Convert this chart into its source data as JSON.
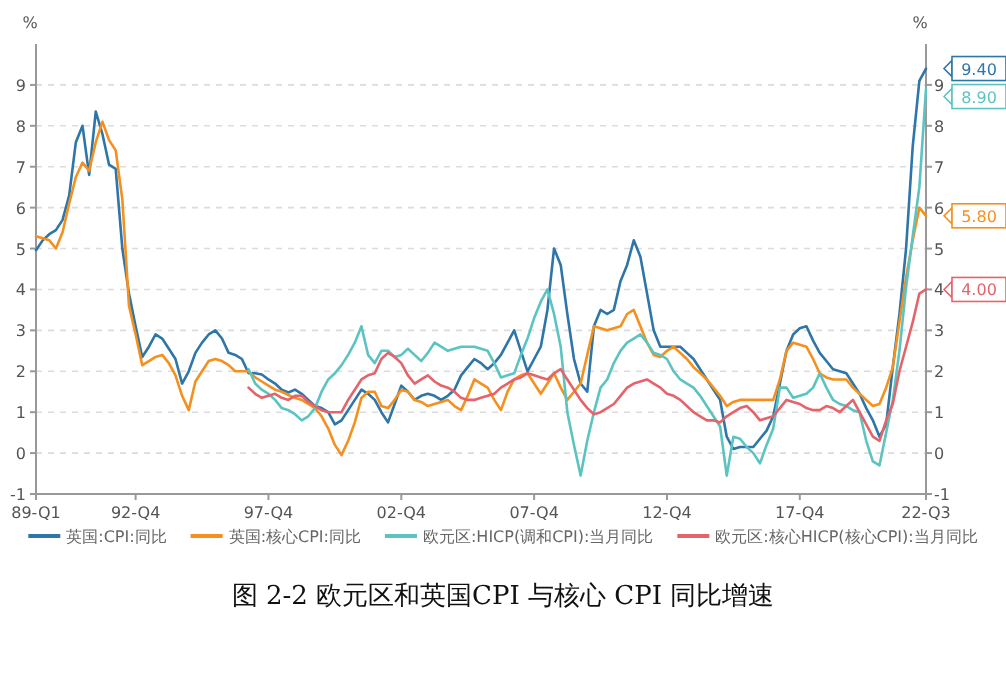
{
  "chart_data": {
    "type": "line",
    "title": "图 2-2 欧元区和英国CPI 与核心 CPI 同比增速",
    "ylabel": "%",
    "y2label": "%",
    "categories": [
      "89-Q1",
      null,
      null,
      null,
      null,
      null,
      null,
      null,
      null,
      null,
      null,
      null,
      null,
      null,
      null,
      "92-Q4",
      null,
      null,
      null,
      null,
      null,
      null,
      null,
      null,
      null,
      null,
      null,
      null,
      null,
      null,
      null,
      null,
      null,
      null,
      null,
      "97-Q4",
      null,
      null,
      null,
      null,
      null,
      null,
      null,
      null,
      null,
      null,
      null,
      null,
      null,
      null,
      null,
      null,
      null,
      null,
      null,
      "02-Q4",
      null,
      null,
      null,
      null,
      null,
      null,
      null,
      null,
      null,
      null,
      null,
      null,
      null,
      null,
      null,
      null,
      null,
      null,
      null,
      "07-Q4",
      null,
      null,
      null,
      null,
      null,
      null,
      null,
      null,
      null,
      null,
      null,
      null,
      null,
      null,
      null,
      null,
      null,
      null,
      null,
      "12-Q4",
      null,
      null,
      null,
      null,
      null,
      null,
      null,
      null,
      null,
      null,
      null,
      null,
      null,
      null,
      null,
      null,
      null,
      null,
      null,
      "17-Q4",
      null,
      null,
      null,
      null,
      null,
      null,
      null,
      null,
      null,
      null,
      null,
      null,
      null,
      null,
      null,
      null,
      null,
      null,
      "22-Q3"
    ],
    "ylim": [
      -1,
      10
    ],
    "yticks": [
      -1,
      0,
      1,
      2,
      3,
      4,
      5,
      6,
      7,
      8,
      9
    ],
    "y2lim": [
      -1,
      10
    ],
    "y2ticks": [
      -1,
      0,
      1,
      2,
      3,
      4,
      5,
      6,
      7,
      8,
      9
    ],
    "grid": "y",
    "legend": "bottom",
    "line_style": "solid",
    "marker": "none",
    "series": [
      {
        "name": "英国:CPI:同比",
        "color": "#2e75a8",
        "values": [
          4.96,
          5.2,
          5.35,
          5.45,
          5.7,
          6.3,
          7.6,
          8.0,
          6.8,
          8.35,
          7.8,
          7.05,
          6.95,
          5.0,
          3.9,
          3.1,
          2.35,
          2.6,
          2.9,
          2.8,
          2.55,
          2.3,
          1.7,
          2.0,
          2.45,
          2.7,
          2.9,
          3.0,
          2.8,
          2.45,
          2.4,
          2.3,
          1.95,
          1.95,
          1.92,
          1.8,
          1.7,
          1.55,
          1.48,
          1.55,
          1.45,
          1.3,
          1.15,
          1.1,
          1.0,
          0.7,
          0.8,
          1.05,
          1.3,
          1.55,
          1.45,
          1.3,
          1.0,
          0.75,
          1.2,
          1.65,
          1.5,
          1.3,
          1.4,
          1.45,
          1.4,
          1.3,
          1.4,
          1.55,
          1.9,
          2.1,
          2.3,
          2.2,
          2.05,
          2.2,
          2.4,
          2.7,
          3.0,
          2.5,
          2.0,
          2.3,
          2.6,
          3.5,
          5.0,
          4.6,
          3.4,
          2.3,
          1.7,
          1.5,
          3.1,
          3.5,
          3.4,
          3.5,
          4.2,
          4.6,
          5.2,
          4.8,
          3.9,
          3.0,
          2.6,
          2.6,
          2.6,
          2.6,
          2.45,
          2.3,
          2.05,
          1.8,
          1.55,
          1.3,
          0.4,
          0.1,
          0.15,
          0.15,
          0.15,
          0.35,
          0.55,
          0.9,
          1.7,
          2.5,
          2.9,
          3.05,
          3.1,
          2.75,
          2.45,
          2.25,
          2.05,
          2.0,
          1.95,
          1.7,
          1.45,
          1.1,
          0.8,
          0.4,
          0.7,
          2.1,
          3.4,
          5.0,
          7.5,
          9.1,
          9.4
        ]
      },
      {
        "name": "英国:核心CPI:同比",
        "color": "#f5901e",
        "values": [
          5.3,
          5.25,
          5.2,
          5.0,
          5.4,
          6.1,
          6.75,
          7.1,
          6.9,
          7.6,
          8.1,
          7.65,
          7.4,
          6.2,
          3.6,
          2.9,
          2.15,
          2.25,
          2.35,
          2.4,
          2.2,
          1.9,
          1.4,
          1.05,
          1.75,
          2.0,
          2.25,
          2.3,
          2.25,
          2.15,
          2.0,
          2.0,
          2.0,
          1.85,
          1.75,
          1.65,
          1.55,
          1.5,
          1.42,
          1.35,
          1.3,
          1.2,
          1.1,
          0.9,
          0.6,
          0.2,
          -0.05,
          0.3,
          0.75,
          1.35,
          1.5,
          1.5,
          1.15,
          1.1,
          1.3,
          1.55,
          1.5,
          1.3,
          1.25,
          1.15,
          1.2,
          1.25,
          1.3,
          1.15,
          1.05,
          1.4,
          1.8,
          1.7,
          1.6,
          1.3,
          1.05,
          1.5,
          1.8,
          1.9,
          1.95,
          1.7,
          1.45,
          1.7,
          1.95,
          1.6,
          1.3,
          1.5,
          1.7,
          2.4,
          3.1,
          3.05,
          3.0,
          3.05,
          3.1,
          3.4,
          3.5,
          3.1,
          2.7,
          2.4,
          2.35,
          2.5,
          2.6,
          2.45,
          2.3,
          2.1,
          1.95,
          1.8,
          1.6,
          1.4,
          1.15,
          1.25,
          1.3,
          1.3,
          1.3,
          1.3,
          1.3,
          1.3,
          1.8,
          2.5,
          2.7,
          2.65,
          2.6,
          2.3,
          1.95,
          1.85,
          1.8,
          1.8,
          1.8,
          1.6,
          1.45,
          1.3,
          1.15,
          1.2,
          1.6,
          2.1,
          3.2,
          4.3,
          5.2,
          6.0,
          5.8
        ]
      },
      {
        "name": "欧元区:HICP(调和CPI):当月同比",
        "color": "#5bc4c0",
        "values": [
          null,
          null,
          null,
          null,
          null,
          null,
          null,
          null,
          null,
          null,
          null,
          null,
          null,
          null,
          null,
          null,
          null,
          null,
          null,
          null,
          null,
          null,
          null,
          null,
          null,
          null,
          null,
          null,
          null,
          null,
          null,
          null,
          2.05,
          1.7,
          1.55,
          1.45,
          1.3,
          1.1,
          1.05,
          0.95,
          0.8,
          0.9,
          1.1,
          1.5,
          1.8,
          1.95,
          2.15,
          2.4,
          2.7,
          3.1,
          2.4,
          2.2,
          2.5,
          2.5,
          2.35,
          2.4,
          2.55,
          2.4,
          2.25,
          2.45,
          2.7,
          2.6,
          2.5,
          2.55,
          2.6,
          2.6,
          2.6,
          2.55,
          2.5,
          2.2,
          1.85,
          1.9,
          1.95,
          2.4,
          2.8,
          3.3,
          3.7,
          4.0,
          3.4,
          2.6,
          1.0,
          0.2,
          -0.55,
          0.3,
          1.0,
          1.6,
          1.8,
          2.2,
          2.5,
          2.7,
          2.8,
          2.9,
          2.7,
          2.45,
          2.4,
          2.3,
          2.0,
          1.8,
          1.7,
          1.6,
          1.4,
          1.15,
          0.9,
          0.65,
          -0.55,
          0.4,
          0.35,
          0.15,
          0.0,
          -0.25,
          0.2,
          0.6,
          1.6,
          1.6,
          1.35,
          1.4,
          1.45,
          1.6,
          1.95,
          1.6,
          1.3,
          1.2,
          1.15,
          1.05,
          1.0,
          0.3,
          -0.2,
          -0.3,
          0.5,
          1.3,
          2.5,
          4.05,
          5.3,
          6.5,
          8.9
        ]
      },
      {
        "name": "欧元区:核心HICP(核心CPI):当月同比",
        "color": "#e5636a",
        "values": [
          null,
          null,
          null,
          null,
          null,
          null,
          null,
          null,
          null,
          null,
          null,
          null,
          null,
          null,
          null,
          null,
          null,
          null,
          null,
          null,
          null,
          null,
          null,
          null,
          null,
          null,
          null,
          null,
          null,
          null,
          null,
          null,
          1.6,
          1.45,
          1.35,
          1.4,
          1.45,
          1.35,
          1.3,
          1.4,
          1.4,
          1.25,
          1.15,
          1.05,
          1.0,
          1.0,
          1.0,
          1.3,
          1.55,
          1.8,
          1.9,
          1.95,
          2.3,
          2.45,
          2.35,
          2.2,
          1.9,
          1.7,
          1.8,
          1.9,
          1.75,
          1.65,
          1.6,
          1.5,
          1.35,
          1.3,
          1.3,
          1.35,
          1.4,
          1.45,
          1.6,
          1.7,
          1.8,
          1.85,
          1.95,
          1.9,
          1.85,
          1.8,
          1.95,
          2.05,
          1.8,
          1.55,
          1.3,
          1.1,
          0.95,
          1.0,
          1.1,
          1.2,
          1.4,
          1.6,
          1.7,
          1.75,
          1.8,
          1.7,
          1.6,
          1.45,
          1.4,
          1.3,
          1.15,
          1.0,
          0.9,
          0.8,
          0.8,
          0.75,
          0.9,
          1.0,
          1.1,
          1.15,
          1.0,
          0.8,
          0.85,
          0.9,
          1.1,
          1.3,
          1.25,
          1.2,
          1.1,
          1.05,
          1.05,
          1.15,
          1.1,
          1.0,
          1.15,
          1.3,
          1.0,
          0.7,
          0.4,
          0.3,
          0.8,
          1.2,
          2.0,
          2.6,
          3.2,
          3.9,
          4.0
        ]
      }
    ],
    "annotations": [
      {
        "text": "9.40",
        "x": "22-Q3",
        "y": 9.4
      },
      {
        "text": "5.80",
        "x": "22-Q3",
        "y": 5.8
      },
      {
        "text": "8.90",
        "x": "22-Q3",
        "y": 8.9
      },
      {
        "text": "4.00",
        "x": "22-Q3",
        "y": 4.0
      }
    ]
  }
}
